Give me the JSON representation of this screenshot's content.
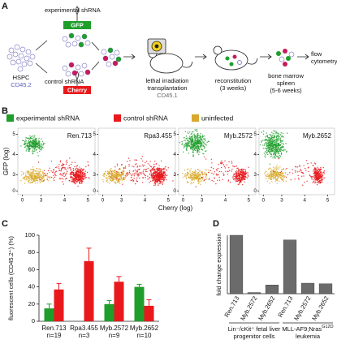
{
  "panel_a": {
    "label": "A",
    "hspc": "HSPC",
    "hspc_marker": "CD45.2",
    "experimental": "experimental shRNA",
    "gfp": "GFP",
    "control": "control shRNA",
    "cherry": "Cherry",
    "step1": [
      "lethal irradiation",
      "transplantation"
    ],
    "step1_marker": "CD45.1",
    "step2": [
      "reconstitution",
      "(3 weeks)"
    ],
    "step3": [
      "bone marrow",
      "spleen",
      "(5-6 weeks)"
    ],
    "step4": [
      "flow",
      "cytometry"
    ]
  },
  "panel_b": {
    "label": "B",
    "other_legend": {
      "name": "uninfected",
      "color": "#d8a92c"
    },
    "plots": [
      "Ren.713",
      "Rpa3.455",
      "Myb.2572",
      "Myb.2652"
    ],
    "x_label": "Cherry (log)",
    "y_label": "GFP (log)",
    "scale": "biexponential",
    "lim": [
      -0.7,
      5.3
    ],
    "ticks": [
      0,
      3,
      4,
      5
    ]
  },
  "chart_data": [
    {
      "type": "bar",
      "panel": "C",
      "ylabel": "fluorescent cells (CD45.2⁺) (%)",
      "categories": [
        "Ren.713",
        "Rpa3.455",
        "Myb.2572",
        "Myb.2652"
      ],
      "category_notes": [
        "n=19",
        "n=3",
        "n=9",
        "n=10"
      ],
      "series": [
        {
          "name": "experimental shRNA",
          "color": "#1f9e2c",
          "values": [
            15,
            null,
            20,
            40
          ],
          "errors": [
            5,
            null,
            4,
            3
          ]
        },
        {
          "name": "control shRNA",
          "color": "#e8191c",
          "values": [
            37,
            70,
            46,
            18
          ],
          "errors": [
            7,
            15,
            6,
            7
          ]
        }
      ],
      "ylim": [
        0,
        100
      ],
      "yticks": [
        0,
        20,
        40,
        60,
        80,
        100
      ]
    },
    {
      "type": "bar",
      "panel": "D",
      "ylabel": "fold change expression",
      "color": "#6b6b6b",
      "ylim": [
        0,
        1
      ],
      "groups": [
        {
          "label": [
            "Lin⁻/cKit⁺ fetal liver",
            "progenitor cells"
          ],
          "categories": [
            "Ren.713",
            "Myb.2572",
            "Myb.2652"
          ],
          "values": [
            1.0,
            0.02,
            0.15
          ]
        },
        {
          "label": [
            {
              "text": "MLL-AF9;Nras",
              "sup": "G12D"
            },
            "leukemia"
          ],
          "categories": [
            "Ren.713",
            "Myb.2572",
            "Myb.2652"
          ],
          "values": [
            0.92,
            0.18,
            0.17
          ]
        }
      ]
    }
  ]
}
